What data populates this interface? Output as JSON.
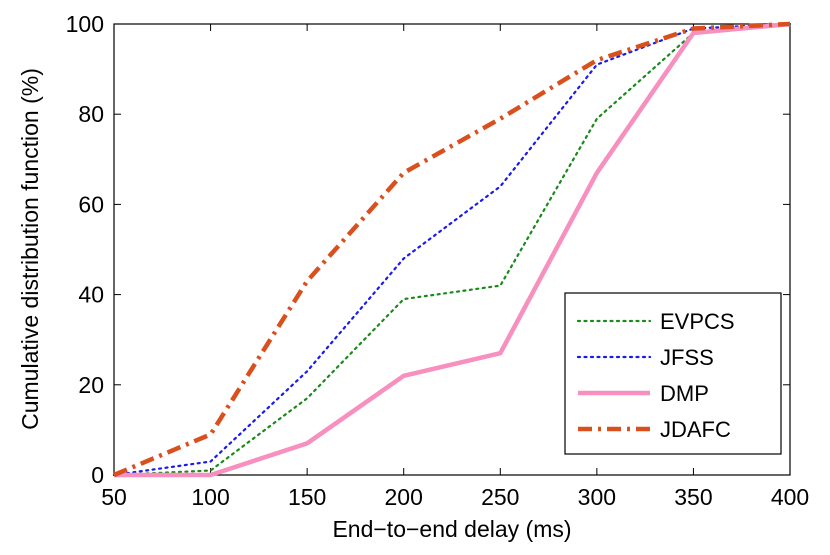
{
  "chart_data": {
    "type": "line",
    "title": "",
    "xlabel": "End−to−end delay (ms)",
    "ylabel": "Cumulative distribution function (%)",
    "xlim": [
      50,
      400
    ],
    "ylim": [
      0,
      100
    ],
    "xticks": [
      50,
      100,
      150,
      200,
      250,
      300,
      350,
      400
    ],
    "yticks": [
      0,
      20,
      40,
      60,
      80,
      100
    ],
    "grid": false,
    "legend_position": "bottom-right",
    "x": [
      50,
      100,
      150,
      200,
      250,
      300,
      350,
      400
    ],
    "series": [
      {
        "name": "EVPCS",
        "values": [
          0,
          1,
          17,
          39,
          42,
          79,
          98,
          100
        ],
        "color": "#1a8a1a",
        "style": "dotted"
      },
      {
        "name": "JFSS",
        "values": [
          0,
          3,
          23,
          48,
          64,
          91,
          99,
          100
        ],
        "color": "#1a1aee",
        "style": "dotted"
      },
      {
        "name": "DMP",
        "values": [
          0,
          0,
          7,
          22,
          27,
          67,
          98,
          100
        ],
        "color": "#f78fbf",
        "style": "solid"
      },
      {
        "name": "JDAFC",
        "values": [
          0,
          9,
          43,
          67,
          79,
          92,
          99,
          100
        ],
        "color": "#d9501e",
        "style": "dashdot"
      }
    ]
  }
}
